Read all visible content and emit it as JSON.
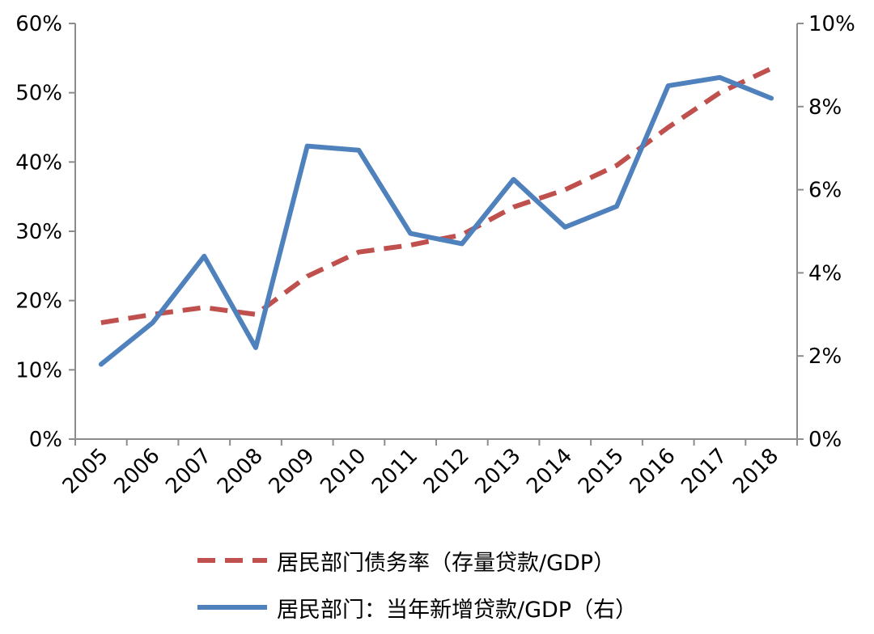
{
  "chart_data": {
    "type": "line",
    "categories": [
      "2005",
      "2006",
      "2007",
      "2008",
      "2009",
      "2010",
      "2011",
      "2012",
      "2013",
      "2014",
      "2015",
      "2016",
      "2017",
      "2018"
    ],
    "series": [
      {
        "name": "居民部门债务率（存量贷款/GDP）",
        "axis": "left",
        "style": "dashed",
        "color": "#C0504D",
        "values": [
          16.8,
          18.0,
          19.0,
          18.0,
          23.5,
          27.0,
          28.0,
          29.5,
          33.5,
          36.0,
          39.5,
          45.0,
          50.0,
          53.5
        ]
      },
      {
        "name": "居民部门：当年新增贷款/GDP（右）",
        "axis": "right",
        "style": "solid",
        "color": "#4F81BD",
        "values": [
          1.8,
          2.8,
          4.4,
          2.2,
          7.05,
          6.95,
          4.95,
          4.7,
          6.25,
          5.1,
          5.6,
          8.5,
          8.7,
          8.2
        ]
      }
    ],
    "y_left": {
      "min": 0,
      "max": 60,
      "step": 10,
      "tick_labels": [
        "0%",
        "10%",
        "20%",
        "30%",
        "40%",
        "50%",
        "60%"
      ]
    },
    "y_right": {
      "min": 0,
      "max": 10,
      "step": 2,
      "tick_labels": [
        "0%",
        "2%",
        "4%",
        "6%",
        "8%",
        "10%"
      ]
    },
    "title": "",
    "xlabel": "",
    "ylabel": "",
    "grid": false,
    "legend_position": "bottom"
  }
}
